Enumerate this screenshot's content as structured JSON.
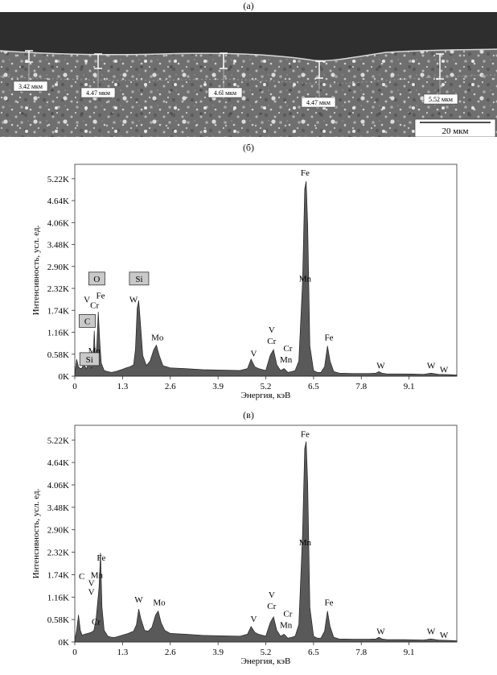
{
  "figure": {
    "panel_a_label": "(а)",
    "panel_b_label": "(б)",
    "panel_c_label": "(в)"
  },
  "micrograph": {
    "scale_bar_label": "20 мкм",
    "thickness_labels": [
      "3.42 мкм",
      "4.47 мкм",
      "4.6l мкм",
      "4.47 мкм",
      "5.52 мкм"
    ],
    "colors": {
      "top": "#2c2c2c",
      "bulk": "#777777",
      "boundary": "#cfcfcf"
    }
  },
  "chart_data": [
    {
      "type": "area",
      "panel": "(б)",
      "title": "",
      "xlabel": "Энергия, кэВ",
      "ylabel": "Интенсивность, усл. ед.",
      "xlim": [
        0,
        10.4
      ],
      "ylim": [
        0,
        5.6
      ],
      "y_unit": "K",
      "x_ticks": [
        "0",
        "1.3",
        "2.6",
        "3.9",
        "5.2",
        "6.5",
        "7.8",
        "9.1"
      ],
      "y_ticks": [
        "0K",
        "0.58K",
        "1.16K",
        "1.74K",
        "2.32K",
        "2.90K",
        "3.48K",
        "4.06K",
        "4.64K",
        "5.22K"
      ],
      "series": [
        {
          "values_are": "intensity_K_at_energy_keV",
          "x": [
            0.0,
            0.05,
            0.1,
            0.15,
            0.2,
            0.25,
            0.28,
            0.32,
            0.36,
            0.4,
            0.45,
            0.5,
            0.53,
            0.56,
            0.6,
            0.64,
            0.68,
            0.72,
            0.8,
            0.9,
            1.0,
            1.1,
            1.2,
            1.3,
            1.4,
            1.5,
            1.6,
            1.65,
            1.7,
            1.74,
            1.78,
            1.85,
            1.95,
            2.05,
            2.15,
            2.22,
            2.3,
            2.4,
            2.6,
            3.0,
            3.5,
            4.0,
            4.5,
            4.7,
            4.8,
            4.9,
            5.0,
            5.2,
            5.32,
            5.41,
            5.5,
            5.6,
            5.7,
            5.8,
            5.9,
            6.0,
            6.1,
            6.2,
            6.26,
            6.3,
            6.34,
            6.4,
            6.5,
            6.6,
            6.7,
            6.8,
            6.88,
            6.95,
            7.05,
            7.2,
            7.6,
            8.0,
            8.2,
            8.28,
            8.36,
            8.5,
            9.0,
            9.5,
            9.7,
            9.9,
            10.2,
            10.4
          ],
          "y": [
            0.05,
            0.45,
            0.25,
            0.2,
            0.22,
            0.35,
            0.25,
            0.2,
            0.3,
            0.5,
            0.2,
            0.35,
            1.2,
            0.45,
            0.8,
            1.7,
            0.9,
            0.35,
            0.15,
            0.12,
            0.1,
            0.12,
            0.15,
            0.18,
            0.22,
            0.25,
            0.3,
            0.7,
            1.8,
            2.0,
            1.5,
            0.55,
            0.28,
            0.4,
            0.7,
            0.82,
            0.55,
            0.28,
            0.22,
            0.2,
            0.17,
            0.16,
            0.15,
            0.2,
            0.45,
            0.25,
            0.2,
            0.15,
            0.55,
            0.7,
            0.3,
            0.15,
            0.2,
            0.1,
            0.12,
            0.15,
            0.4,
            2.5,
            4.95,
            5.15,
            4.0,
            0.8,
            0.15,
            0.1,
            0.1,
            0.25,
            0.8,
            0.4,
            0.12,
            0.08,
            0.07,
            0.07,
            0.08,
            0.12,
            0.08,
            0.06,
            0.06,
            0.05,
            0.08,
            0.05,
            0.04,
            0.03
          ]
        }
      ],
      "peak_labels": [
        {
          "text": "Fe",
          "x": 6.27,
          "y": 5.3
        },
        {
          "text": "Mn",
          "x": 6.27,
          "y": 2.5
        },
        {
          "text": "Fe",
          "x": 6.92,
          "y": 0.95
        },
        {
          "text": "Mo",
          "x": 2.25,
          "y": 0.95
        },
        {
          "text": "W",
          "x": 1.6,
          "y": 1.95
        },
        {
          "text": "V",
          "x": 0.33,
          "y": 1.95
        },
        {
          "text": "Fe",
          "x": 0.7,
          "y": 2.05
        },
        {
          "text": "Cr",
          "x": 0.54,
          "y": 1.8
        },
        {
          "text": "Mn",
          "x": 0.53,
          "y": 0.6
        },
        {
          "text": "V",
          "x": 4.87,
          "y": 0.52
        },
        {
          "text": "V",
          "x": 5.36,
          "y": 1.15
        },
        {
          "text": "Cr",
          "x": 5.36,
          "y": 0.85
        },
        {
          "text": "Cr",
          "x": 5.8,
          "y": 0.66
        },
        {
          "text": "Mn",
          "x": 5.75,
          "y": 0.36
        },
        {
          "text": "W",
          "x": 8.33,
          "y": 0.2
        },
        {
          "text": "W",
          "x": 9.7,
          "y": 0.2
        },
        {
          "text": "W",
          "x": 10.05,
          "y": 0.1
        }
      ],
      "boxed_labels": [
        {
          "text": "O",
          "x": 0.6,
          "y": 2.58
        },
        {
          "text": "Si",
          "x": 1.75,
          "y": 2.58
        },
        {
          "text": "C",
          "x": 0.34,
          "y": 1.46
        },
        {
          "text": "Si",
          "x": 0.4,
          "y": 0.45
        }
      ]
    },
    {
      "type": "area",
      "panel": "(в)",
      "title": "",
      "xlabel": "Энергия, кэВ",
      "ylabel": "Интенсивность, усл. ед.",
      "xlim": [
        0,
        10.4
      ],
      "ylim": [
        0,
        5.6
      ],
      "y_unit": "K",
      "x_ticks": [
        "0",
        "1.3",
        "2.6",
        "3.9",
        "5.2",
        "6.5",
        "7.8",
        "9.1"
      ],
      "y_ticks": [
        "0K",
        "0.58K",
        "1.16K",
        "1.74K",
        "2.32K",
        "2.90K",
        "3.48K",
        "4.06K",
        "4.64K",
        "5.22K"
      ],
      "series": [
        {
          "values_are": "intensity_K_at_energy_keV",
          "x": [
            0.0,
            0.05,
            0.1,
            0.15,
            0.2,
            0.27,
            0.35,
            0.45,
            0.52,
            0.58,
            0.62,
            0.66,
            0.7,
            0.74,
            0.8,
            0.9,
            1.0,
            1.1,
            1.2,
            1.3,
            1.45,
            1.6,
            1.68,
            1.74,
            1.8,
            1.9,
            2.0,
            2.1,
            2.2,
            2.27,
            2.35,
            2.45,
            2.6,
            3.0,
            3.5,
            4.0,
            4.5,
            4.7,
            4.8,
            4.9,
            5.0,
            5.2,
            5.32,
            5.41,
            5.5,
            5.6,
            5.7,
            5.8,
            5.9,
            6.0,
            6.1,
            6.2,
            6.26,
            6.3,
            6.34,
            6.4,
            6.5,
            6.6,
            6.7,
            6.8,
            6.88,
            6.95,
            7.05,
            7.2,
            7.6,
            8.0,
            8.2,
            8.28,
            8.36,
            8.5,
            9.0,
            9.5,
            9.7,
            9.9,
            10.2,
            10.4
          ],
          "y": [
            0.05,
            0.3,
            0.7,
            0.3,
            0.18,
            0.2,
            0.22,
            0.25,
            0.3,
            0.6,
            1.0,
            1.4,
            2.3,
            0.9,
            0.3,
            0.15,
            0.12,
            0.12,
            0.15,
            0.18,
            0.22,
            0.28,
            0.45,
            0.85,
            0.6,
            0.3,
            0.28,
            0.38,
            0.7,
            0.8,
            0.5,
            0.3,
            0.22,
            0.2,
            0.17,
            0.16,
            0.15,
            0.2,
            0.4,
            0.25,
            0.2,
            0.15,
            0.5,
            0.65,
            0.3,
            0.15,
            0.2,
            0.1,
            0.12,
            0.15,
            0.45,
            2.8,
            5.0,
            5.18,
            4.1,
            0.9,
            0.15,
            0.1,
            0.1,
            0.28,
            0.8,
            0.4,
            0.12,
            0.08,
            0.07,
            0.07,
            0.08,
            0.12,
            0.08,
            0.06,
            0.06,
            0.05,
            0.08,
            0.05,
            0.04,
            0.03
          ]
        }
      ],
      "peak_labels": [
        {
          "text": "Fe",
          "x": 6.27,
          "y": 5.3
        },
        {
          "text": "Mn",
          "x": 6.27,
          "y": 2.5
        },
        {
          "text": "Fe",
          "x": 6.92,
          "y": 0.95
        },
        {
          "text": "Mo",
          "x": 2.3,
          "y": 0.95
        },
        {
          "text": "W",
          "x": 1.74,
          "y": 1.02
        },
        {
          "text": "Fe",
          "x": 0.72,
          "y": 2.1
        },
        {
          "text": "C",
          "x": 0.19,
          "y": 1.62
        },
        {
          "text": "V",
          "x": 0.45,
          "y": 1.45
        },
        {
          "text": "Mn",
          "x": 0.6,
          "y": 1.65
        },
        {
          "text": "V",
          "x": 0.45,
          "y": 1.22
        },
        {
          "text": "Cr",
          "x": 0.58,
          "y": 0.45
        },
        {
          "text": "V",
          "x": 4.87,
          "y": 0.52
        },
        {
          "text": "V",
          "x": 5.36,
          "y": 1.15
        },
        {
          "text": "Cr",
          "x": 5.36,
          "y": 0.85
        },
        {
          "text": "Cr",
          "x": 5.8,
          "y": 0.66
        },
        {
          "text": "Mn",
          "x": 5.75,
          "y": 0.36
        },
        {
          "text": "W",
          "x": 8.33,
          "y": 0.2
        },
        {
          "text": "W",
          "x": 9.7,
          "y": 0.2
        },
        {
          "text": "W",
          "x": 10.05,
          "y": 0.1
        }
      ],
      "boxed_labels": []
    }
  ]
}
